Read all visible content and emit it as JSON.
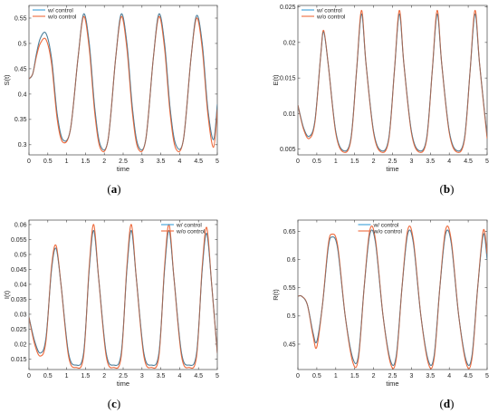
{
  "colors": {
    "with_control": "#3a9fd8",
    "without_control": "#ee6a3c",
    "overlap": "#6b6b6b",
    "axis": "#444444"
  },
  "chart_data": [
    {
      "type": "line",
      "caption": "(a)",
      "xlabel": "time",
      "ylabel": "S(t)",
      "xlim": [
        0,
        5
      ],
      "ylim": [
        0.28,
        0.575
      ],
      "xticks": [
        "0",
        "0.5",
        "1",
        "1.5",
        "2",
        "2.5",
        "3",
        "3.5",
        "4",
        "4.5",
        "5"
      ],
      "yticks": [
        0.3,
        0.35,
        0.4,
        0.45,
        0.5,
        0.55
      ],
      "ytick_labels": [
        "0.3",
        "0.35",
        "0.4",
        "0.45",
        "0.5",
        "0.55"
      ],
      "legend": "top-left",
      "x": [
        0,
        0.1,
        0.2,
        0.3,
        0.45,
        0.6,
        0.75,
        0.9,
        1.1,
        1.3,
        1.45,
        1.6,
        1.75,
        1.9,
        2.1,
        2.3,
        2.45,
        2.6,
        2.75,
        2.9,
        3.1,
        3.3,
        3.45,
        3.6,
        3.75,
        3.9,
        4.1,
        4.3,
        4.45,
        4.6,
        4.75,
        4.9,
        5.0
      ],
      "series": [
        {
          "name": "w/ control",
          "values": [
            0.43,
            0.44,
            0.48,
            0.51,
            0.52,
            0.47,
            0.36,
            0.31,
            0.33,
            0.47,
            0.558,
            0.5,
            0.37,
            0.298,
            0.31,
            0.47,
            0.558,
            0.5,
            0.37,
            0.298,
            0.31,
            0.47,
            0.558,
            0.5,
            0.37,
            0.3,
            0.31,
            0.47,
            0.555,
            0.5,
            0.37,
            0.31,
            0.38
          ]
        },
        {
          "name": "w/o control",
          "values": [
            0.43,
            0.44,
            0.475,
            0.5,
            0.508,
            0.46,
            0.35,
            0.305,
            0.33,
            0.47,
            0.553,
            0.49,
            0.36,
            0.292,
            0.31,
            0.47,
            0.553,
            0.49,
            0.36,
            0.292,
            0.31,
            0.47,
            0.553,
            0.49,
            0.36,
            0.292,
            0.31,
            0.47,
            0.55,
            0.49,
            0.36,
            0.295,
            0.37
          ]
        }
      ]
    },
    {
      "type": "line",
      "caption": "(b)",
      "xlabel": "time",
      "ylabel": "E(t)",
      "xlim": [
        0,
        5
      ],
      "ylim": [
        0.0042,
        0.0252
      ],
      "xticks": [
        "0",
        "0.5",
        "1",
        "1.5",
        "2",
        "2.5",
        "3",
        "3.5",
        "4",
        "4.5",
        "5"
      ],
      "yticks": [
        0.005,
        0.01,
        0.015,
        0.02,
        0.025
      ],
      "ytick_labels": [
        "0.005",
        "0.01",
        "0.015",
        "0.02",
        "0.025"
      ],
      "legend": "top-left",
      "x": [
        0,
        0.15,
        0.3,
        0.45,
        0.6,
        0.68,
        0.8,
        1.0,
        1.2,
        1.4,
        1.55,
        1.68,
        1.8,
        2.0,
        2.2,
        2.4,
        2.55,
        2.68,
        2.8,
        3.0,
        3.2,
        3.4,
        3.55,
        3.68,
        3.8,
        4.0,
        4.2,
        4.4,
        4.55,
        4.68,
        4.8,
        5.0
      ],
      "series": [
        {
          "name": "w/ control",
          "values": [
            0.0112,
            0.008,
            0.0068,
            0.009,
            0.018,
            0.0215,
            0.017,
            0.0075,
            0.0048,
            0.0065,
            0.016,
            0.024,
            0.017,
            0.0075,
            0.0048,
            0.0065,
            0.016,
            0.024,
            0.017,
            0.0075,
            0.0048,
            0.0065,
            0.016,
            0.024,
            0.017,
            0.0075,
            0.0048,
            0.0065,
            0.016,
            0.024,
            0.017,
            0.0068
          ]
        },
        {
          "name": "w/o control",
          "values": [
            0.0112,
            0.0078,
            0.0065,
            0.0088,
            0.018,
            0.0217,
            0.017,
            0.0073,
            0.0046,
            0.0063,
            0.016,
            0.0245,
            0.017,
            0.0073,
            0.0046,
            0.0063,
            0.016,
            0.0245,
            0.017,
            0.0073,
            0.0046,
            0.0063,
            0.016,
            0.0245,
            0.017,
            0.0073,
            0.0046,
            0.0063,
            0.016,
            0.0245,
            0.017,
            0.0065
          ]
        }
      ]
    },
    {
      "type": "line",
      "caption": "(c)",
      "xlabel": "time",
      "ylabel": "I(t)",
      "xlim": [
        0,
        5
      ],
      "ylim": [
        0.0115,
        0.0615
      ],
      "xticks": [
        "0",
        "0.5",
        "1",
        "1.5",
        "2",
        "2.5",
        "3",
        "3.5",
        "4",
        "4.5",
        "5"
      ],
      "yticks": [
        0.015,
        0.02,
        0.025,
        0.03,
        0.035,
        0.04,
        0.045,
        0.05,
        0.055,
        0.06
      ],
      "ytick_labels": [
        "0.015",
        "0.02",
        "0.025",
        "0.03",
        "0.035",
        "0.04",
        "0.045",
        "0.05",
        "0.055",
        "0.06"
      ],
      "legend": "top-right",
      "x": [
        0,
        0.15,
        0.3,
        0.45,
        0.6,
        0.72,
        0.85,
        1.05,
        1.25,
        1.45,
        1.6,
        1.72,
        1.85,
        2.05,
        2.25,
        2.45,
        2.6,
        2.72,
        2.85,
        3.05,
        3.25,
        3.45,
        3.6,
        3.72,
        3.85,
        4.05,
        4.25,
        4.45,
        4.6,
        4.72,
        4.85,
        5.0
      ],
      "series": [
        {
          "name": "w/ control",
          "values": [
            0.029,
            0.021,
            0.017,
            0.022,
            0.045,
            0.052,
            0.04,
            0.017,
            0.013,
            0.017,
            0.045,
            0.058,
            0.042,
            0.017,
            0.013,
            0.017,
            0.045,
            0.058,
            0.042,
            0.017,
            0.013,
            0.017,
            0.045,
            0.058,
            0.042,
            0.017,
            0.013,
            0.017,
            0.045,
            0.057,
            0.04,
            0.017
          ]
        },
        {
          "name": "w/o control",
          "values": [
            0.029,
            0.02,
            0.016,
            0.021,
            0.046,
            0.053,
            0.04,
            0.016,
            0.0122,
            0.016,
            0.046,
            0.06,
            0.042,
            0.016,
            0.0122,
            0.016,
            0.046,
            0.06,
            0.042,
            0.016,
            0.0122,
            0.016,
            0.046,
            0.06,
            0.042,
            0.016,
            0.0122,
            0.016,
            0.046,
            0.059,
            0.04,
            0.017
          ]
        }
      ]
    },
    {
      "type": "line",
      "caption": "(d)",
      "xlabel": "time",
      "ylabel": "R(t)",
      "xlim": [
        0,
        5
      ],
      "ylim": [
        0.405,
        0.67
      ],
      "xticks": [
        "0",
        "0.5",
        "1",
        "1.5",
        "2",
        "2.5",
        "3",
        "3.5",
        "4",
        "4.5",
        "5"
      ],
      "yticks": [
        0.45,
        0.5,
        0.55,
        0.6,
        0.65
      ],
      "ytick_labels": [
        "0.45",
        "0.5",
        "0.55",
        "0.6",
        "0.65"
      ],
      "legend": "top-center",
      "x": [
        0,
        0.1,
        0.25,
        0.4,
        0.5,
        0.65,
        0.8,
        0.9,
        1.05,
        1.25,
        1.45,
        1.6,
        1.75,
        1.9,
        2.05,
        2.25,
        2.45,
        2.6,
        2.75,
        2.9,
        3.05,
        3.25,
        3.45,
        3.6,
        3.75,
        3.9,
        4.05,
        4.25,
        4.45,
        4.6,
        4.75,
        4.9,
        5.0
      ],
      "series": [
        {
          "name": "w/ control",
          "values": [
            0.535,
            0.535,
            0.52,
            0.47,
            0.455,
            0.52,
            0.62,
            0.64,
            0.62,
            0.5,
            0.425,
            0.43,
            0.55,
            0.645,
            0.63,
            0.5,
            0.42,
            0.43,
            0.55,
            0.645,
            0.63,
            0.5,
            0.42,
            0.43,
            0.55,
            0.645,
            0.63,
            0.5,
            0.42,
            0.43,
            0.55,
            0.645,
            0.6
          ]
        },
        {
          "name": "w/o control",
          "values": [
            0.535,
            0.535,
            0.52,
            0.465,
            0.445,
            0.52,
            0.625,
            0.645,
            0.625,
            0.5,
            0.418,
            0.425,
            0.55,
            0.652,
            0.635,
            0.5,
            0.415,
            0.425,
            0.55,
            0.652,
            0.635,
            0.5,
            0.415,
            0.425,
            0.55,
            0.652,
            0.635,
            0.5,
            0.415,
            0.425,
            0.55,
            0.652,
            0.61
          ]
        }
      ]
    }
  ]
}
